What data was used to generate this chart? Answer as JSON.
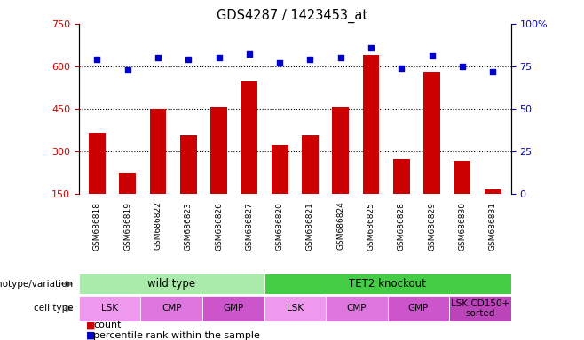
{
  "title": "GDS4287 / 1423453_at",
  "samples": [
    "GSM686818",
    "GSM686819",
    "GSM686822",
    "GSM686823",
    "GSM686826",
    "GSM686827",
    "GSM686820",
    "GSM686821",
    "GSM686824",
    "GSM686825",
    "GSM686828",
    "GSM686829",
    "GSM686830",
    "GSM686831"
  ],
  "counts": [
    365,
    225,
    450,
    355,
    455,
    545,
    320,
    355,
    455,
    640,
    270,
    580,
    265,
    165
  ],
  "percentile": [
    79,
    73,
    80,
    79,
    80,
    82,
    77,
    79,
    80,
    86,
    74,
    81,
    75,
    72
  ],
  "ylim_left": [
    150,
    750
  ],
  "ylim_right": [
    0,
    100
  ],
  "yticks_left": [
    150,
    300,
    450,
    600,
    750
  ],
  "yticks_right": [
    0,
    25,
    50,
    75,
    100
  ],
  "hlines": [
    300,
    450,
    600
  ],
  "bar_color": "#cc0000",
  "dot_color": "#0000cc",
  "left_tick_color": "#cc0000",
  "right_tick_color": "#0000cc",
  "genotype_groups": [
    {
      "label": "wild type",
      "start": 0,
      "end": 6,
      "color": "#aaeaaa"
    },
    {
      "label": "TET2 knockout",
      "start": 6,
      "end": 14,
      "color": "#44cc44"
    }
  ],
  "cell_type_groups": [
    {
      "label": "LSK",
      "start": 0,
      "end": 2,
      "color": "#ee99ee"
    },
    {
      "label": "CMP",
      "start": 2,
      "end": 4,
      "color": "#dd77dd"
    },
    {
      "label": "GMP",
      "start": 4,
      "end": 6,
      "color": "#cc55cc"
    },
    {
      "label": "LSK",
      "start": 6,
      "end": 8,
      "color": "#ee99ee"
    },
    {
      "label": "CMP",
      "start": 8,
      "end": 10,
      "color": "#dd77dd"
    },
    {
      "label": "GMP",
      "start": 10,
      "end": 12,
      "color": "#cc55cc"
    },
    {
      "label": "LSK CD150+\nsorted",
      "start": 12,
      "end": 14,
      "color": "#bb44bb"
    }
  ],
  "background_color": "#ffffff",
  "xlabel_area_color": "#bbbbbb"
}
